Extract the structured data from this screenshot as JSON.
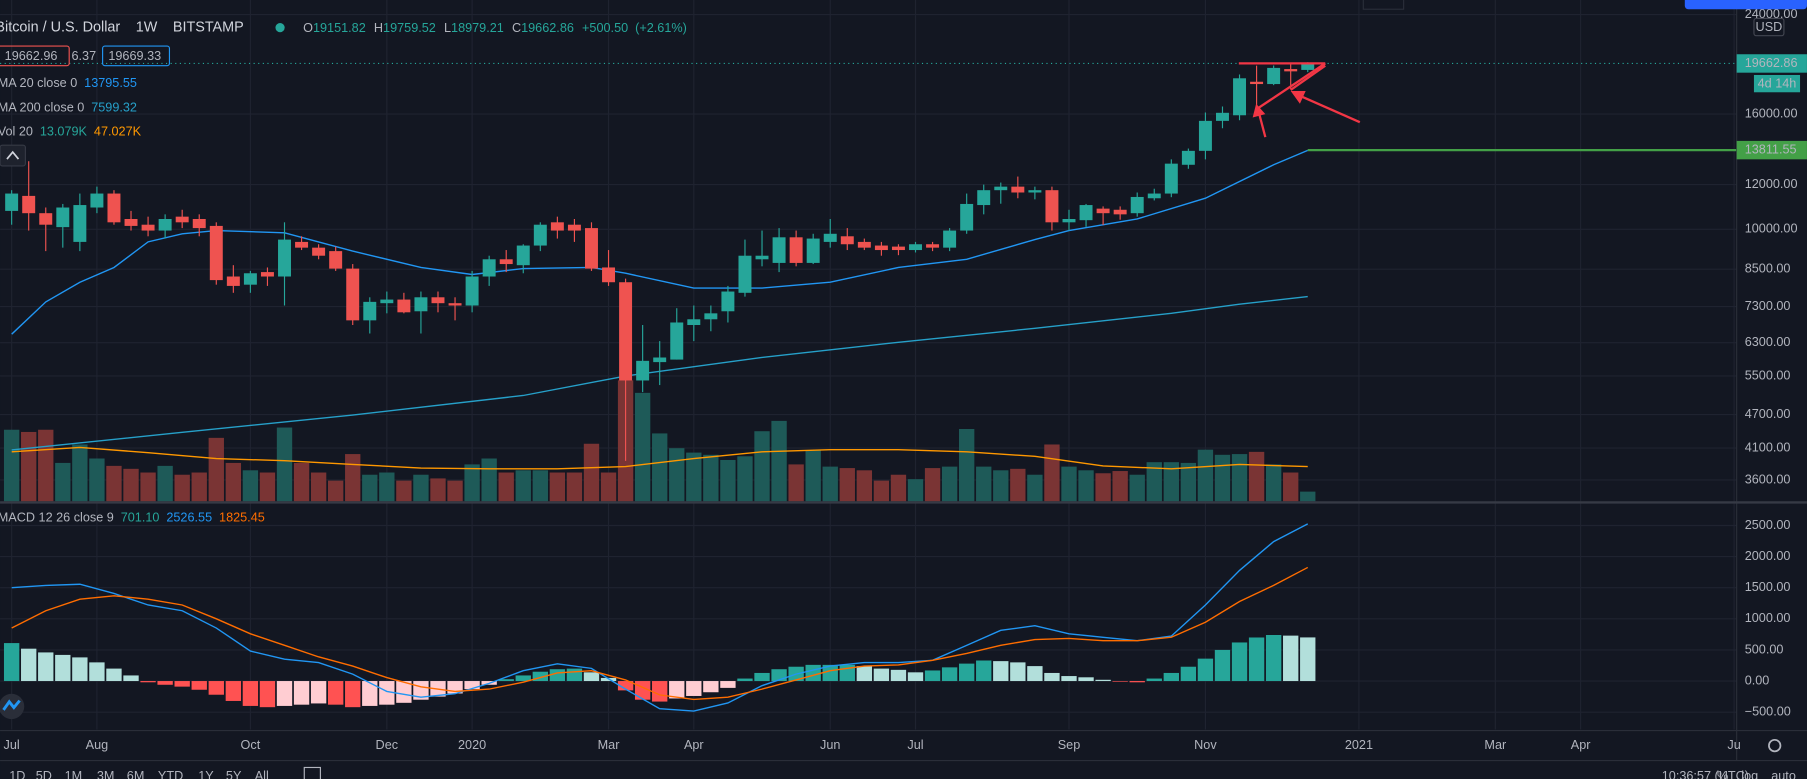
{
  "header": {
    "symbol": "Bitcoin / U.S. Dollar",
    "interval": "1W",
    "exchange": "BITSTAMP",
    "ohlc_labels": [
      "O",
      "H",
      "L",
      "C"
    ],
    "change": {
      "value": 500.5,
      "label": "+500.50"
    },
    "change_pct": {
      "value": 2.61,
      "label": "(+2.61%)"
    },
    "bid": 19662.96,
    "spread": 6.37,
    "ask": 19669.33
  },
  "ui": {
    "timeframes": [
      "1D",
      "5D",
      "1M",
      "3M",
      "6M",
      "YTD",
      "1Y",
      "5Y",
      "All"
    ],
    "clock": "10:36:57 (UTC)",
    "scale_buttons": [
      "%",
      "log",
      "auto"
    ],
    "currency": "USD",
    "countdown": "4d 14h"
  },
  "chart_data": {
    "type": "candlestick",
    "log_scale": true,
    "grid": true,
    "up_color": "#26a69a",
    "down_color": "#ef5350",
    "xlim": [
      -0.68,
      101.15
    ],
    "xticks": [
      {
        "value": 0,
        "label": "Jul"
      },
      {
        "value": 5,
        "label": "Aug"
      },
      {
        "value": 14,
        "label": "Oct"
      },
      {
        "value": 22,
        "label": "Dec"
      },
      {
        "value": 27,
        "label": "2020"
      },
      {
        "value": 35,
        "label": "Mar"
      },
      {
        "value": 40,
        "label": "Apr"
      },
      {
        "value": 48,
        "label": "Jun"
      },
      {
        "value": 53,
        "label": "Jul"
      },
      {
        "value": 62,
        "label": "Sep"
      },
      {
        "value": 70,
        "label": "Nov"
      },
      {
        "value": 79,
        "label": "2021"
      },
      {
        "value": 87,
        "label": "Mar"
      },
      {
        "value": 92,
        "label": "Apr"
      },
      {
        "value": 101,
        "label": "Ju"
      }
    ],
    "ylim": [
      3300,
      24300
    ],
    "yticks": [
      {
        "value": 3600,
        "label": "3600.00"
      },
      {
        "value": 4100,
        "label": "4100.00"
      },
      {
        "value": 4700,
        "label": "4700.00"
      },
      {
        "value": 5500,
        "label": "5500.00"
      },
      {
        "value": 6300,
        "label": "6300.00"
      },
      {
        "value": 7300,
        "label": "7300.00"
      },
      {
        "value": 8500,
        "label": "8500.00"
      },
      {
        "value": 10000,
        "label": "10000.00"
      },
      {
        "value": 12000,
        "label": "12000.00"
      },
      {
        "value": 16000,
        "label": "16000.00"
      },
      {
        "value": 24000,
        "label": "24000.00"
      }
    ],
    "open": [
      10780,
      11460,
      10680,
      10090,
      9500,
      10930,
      11570,
      10430,
      10190,
      9950,
      10530,
      10430,
      10140,
      8250,
      7980,
      8400,
      8250,
      9500,
      9280,
      9150,
      8520,
      6900,
      7400,
      7510,
      7160,
      7580,
      7400,
      7330,
      8250,
      8850,
      8640,
      9360,
      10290,
      10190,
      10050,
      8560,
      8060,
      5400,
      5820,
      5880,
      6770,
      6930,
      7160,
      7720,
      8850,
      8720,
      9680,
      8720,
      9500,
      9720,
      9500,
      9360,
      9320,
      9190,
      9410,
      9280,
      9950,
      11040,
      11730,
      11900,
      11620,
      11730,
      10290,
      10380,
      10880,
      10830,
      10680,
      11350,
      11570,
      13010,
      13770,
      15560,
      15920,
      18250,
      18080,
      19220,
      19151.82
    ],
    "high": [
      11730,
      13200,
      10930,
      11090,
      11570,
      11900,
      11730,
      10780,
      10530,
      10630,
      10830,
      10630,
      10290,
      8640,
      8440,
      8560,
      10290,
      9720,
      9410,
      9320,
      8680,
      7580,
      7760,
      7720,
      7760,
      7760,
      7580,
      8440,
      8980,
      9190,
      9410,
      10290,
      10530,
      10430,
      10290,
      9190,
      8180,
      6770,
      6340,
      7250,
      7330,
      7330,
      7940,
      9590,
      9950,
      10050,
      9950,
      9820,
      10430,
      10050,
      9630,
      9500,
      9410,
      9500,
      9500,
      10050,
      11570,
      12000,
      12100,
      12400,
      11900,
      11900,
      10830,
      11090,
      10980,
      10980,
      11620,
      11800,
      13300,
      13900,
      16100,
      16500,
      18800,
      19490,
      19500,
      19600,
      19759.52
    ],
    "low": [
      10190,
      9950,
      9150,
      9280,
      9150,
      10680,
      10190,
      9950,
      9720,
      9630,
      10050,
      9720,
      7980,
      7720,
      7720,
      7940,
      7330,
      9190,
      8850,
      8440,
      6770,
      6540,
      7100,
      7100,
      6540,
      7130,
      6900,
      7130,
      7940,
      8400,
      8360,
      9150,
      9630,
      9500,
      8440,
      7940,
      3890,
      5150,
      5300,
      5880,
      6340,
      6600,
      6840,
      7600,
      8600,
      8400,
      8600,
      8680,
      9280,
      9190,
      9190,
      8980,
      9000,
      9100,
      9150,
      9150,
      9820,
      10630,
      11100,
      11350,
      11300,
      9950,
      9950,
      10100,
      10180,
      10400,
      10530,
      11250,
      11400,
      12800,
      13300,
      15100,
      15600,
      16300,
      18000,
      17700,
      18979.21
    ],
    "close": [
      11570,
      10680,
      10190,
      10930,
      11040,
      11570,
      10290,
      10140,
      9950,
      10430,
      10290,
      10050,
      8130,
      7940,
      8360,
      8250,
      9590,
      9280,
      8980,
      8520,
      6900,
      7440,
      7510,
      7130,
      7580,
      7400,
      7330,
      8250,
      8850,
      8680,
      9360,
      10190,
      9950,
      9950,
      8520,
      8060,
      5400,
      5850,
      5930,
      6840,
      6930,
      7100,
      7760,
      8980,
      8980,
      9680,
      8720,
      9630,
      9820,
      9410,
      9280,
      9190,
      9190,
      9410,
      9280,
      9950,
      11090,
      11730,
      11900,
      11620,
      11730,
      10290,
      10430,
      11040,
      10680,
      10630,
      11410,
      11570,
      13070,
      13770,
      15560,
      16080,
      18510,
      18080,
      19310,
      19040,
      19662.86
    ],
    "lines": [
      {
        "name": "MA 20 close 0",
        "color": "#2196f3",
        "x": [
          0,
          2,
          4,
          6,
          8,
          10,
          12,
          16,
          20,
          24,
          27,
          30,
          34,
          36,
          40,
          44,
          48,
          52,
          56,
          60,
          62,
          66,
          70,
          74,
          76
        ],
        "values": [
          6520,
          7440,
          8060,
          8560,
          9500,
          9820,
          9950,
          9860,
          9150,
          8560,
          8320,
          8520,
          8560,
          8360,
          7870,
          7870,
          8060,
          8560,
          8850,
          9590,
          9950,
          10430,
          11350,
          13010,
          13795.55
        ]
      },
      {
        "name": "MA 200 close 0",
        "color": "#26a0c9",
        "x": [
          0,
          10,
          20,
          30,
          36,
          44,
          52,
          60,
          68,
          72,
          76
        ],
        "values": [
          4070,
          4370,
          4690,
          5080,
          5500,
          5930,
          6310,
          6680,
          7100,
          7370,
          7599.32
        ]
      }
    ],
    "horizontal_line": {
      "value": 13811.55,
      "color": "#43a047"
    },
    "volume": {
      "name": "Vol 20",
      "ylim": [
        0,
        664
      ],
      "up_color": "#1e5a58",
      "down_color": "#7a3434",
      "values": [
        97,
        94,
        97,
        52,
        77,
        58,
        48,
        44,
        39,
        48,
        36,
        39,
        86,
        52,
        42,
        39,
        100,
        52,
        39,
        28,
        64,
        36,
        39,
        28,
        36,
        31,
        28,
        50,
        58,
        39,
        42,
        42,
        39,
        39,
        78,
        39,
        164,
        147,
        92,
        72,
        66,
        63,
        56,
        61,
        95,
        109,
        50,
        69,
        47,
        45,
        42,
        28,
        36,
        30,
        45,
        47,
        98,
        47,
        42,
        44,
        36,
        77,
        47,
        42,
        38,
        41,
        36,
        53,
        53,
        52,
        70,
        63,
        64,
        67,
        50,
        39,
        13.079
      ],
      "last_label": "13.079K",
      "ma": {
        "color": "#ff9800",
        "x": [
          0,
          4,
          8,
          12,
          16,
          20,
          24,
          28,
          32,
          36,
          40,
          44,
          48,
          52,
          56,
          60,
          64,
          68,
          72,
          76
        ],
        "values": [
          67,
          73,
          66,
          58,
          55,
          50,
          45,
          44,
          44,
          47,
          58,
          67,
          70,
          70,
          67,
          61,
          48,
          44,
          50,
          47.027
        ],
        "last_label": "47.027K"
      }
    },
    "macd": {
      "name": "MACD 12 26 close 9",
      "ylim": [
        -778,
        2852
      ],
      "yticks": [
        {
          "value": -500,
          "label": "−500.00"
        },
        {
          "value": 0,
          "label": "0.00"
        },
        {
          "value": 500,
          "label": "500.00"
        },
        {
          "value": 1000,
          "label": "1000.00"
        },
        {
          "value": 1500,
          "label": "1500.00"
        },
        {
          "value": 2000,
          "label": "2000.00"
        },
        {
          "value": 2500,
          "label": "2500.00"
        }
      ],
      "histogram_colors": [
        "#26a69a",
        "#b2dfdb",
        "#ff5252",
        "#ffcdd2"
      ],
      "histogram": [
        610,
        520,
        460,
        420,
        380,
        300,
        200,
        90,
        -20,
        -60,
        -90,
        -140,
        -220,
        -320,
        -400,
        -420,
        -400,
        -380,
        -360,
        -380,
        -420,
        -400,
        -380,
        -350,
        -300,
        -250,
        -200,
        -130,
        -60,
        30,
        90,
        150,
        190,
        200,
        140,
        50,
        -150,
        -300,
        -330,
        -280,
        -240,
        -180,
        -110,
        40,
        130,
        190,
        230,
        260,
        260,
        260,
        240,
        200,
        180,
        140,
        170,
        220,
        280,
        330,
        320,
        300,
        240,
        130,
        80,
        60,
        20,
        -10,
        -20,
        40,
        130,
        230,
        360,
        500,
        620,
        700,
        740,
        730,
        701.1
      ],
      "histogram_last_label": "701.10",
      "lines": [
        {
          "name": "MACD",
          "color": "#2196f3",
          "x": [
            0,
            2,
            4,
            6,
            8,
            10,
            12,
            14,
            16,
            18,
            20,
            22,
            24,
            26,
            28,
            30,
            32,
            34,
            36,
            38,
            40,
            42,
            44,
            46,
            48,
            50,
            52,
            54,
            56,
            58,
            60,
            62,
            64,
            66,
            68,
            70,
            72,
            74,
            76
          ],
          "values": [
            1500,
            1537,
            1556,
            1407,
            1222,
            1130,
            852,
            481,
            352,
            296,
            111,
            -167,
            -259,
            -204,
            -37,
            167,
            278,
            204,
            -130,
            -444,
            -481,
            -352,
            -74,
            111,
            241,
            296,
            296,
            333,
            574,
            815,
            889,
            759,
            704,
            648,
            722,
            1222,
            1778,
            2241,
            2526.55
          ]
        },
        {
          "name": "Signal",
          "color": "#ff6d00",
          "x": [
            0,
            2,
            4,
            6,
            8,
            10,
            12,
            14,
            16,
            18,
            20,
            22,
            24,
            26,
            28,
            30,
            32,
            34,
            36,
            38,
            40,
            42,
            44,
            46,
            48,
            50,
            52,
            54,
            56,
            58,
            60,
            62,
            64,
            66,
            68,
            70,
            72,
            74,
            76
          ],
          "values": [
            852,
            1130,
            1315,
            1370,
            1315,
            1222,
            1000,
            759,
            574,
            389,
            241,
            56,
            -93,
            -167,
            -130,
            -19,
            130,
            167,
            19,
            -222,
            -296,
            -259,
            -130,
            19,
            167,
            241,
            259,
            333,
            444,
            574,
            667,
            685,
            648,
            648,
            704,
            944,
            1278,
            1537,
            1825.45
          ]
        }
      ]
    }
  }
}
